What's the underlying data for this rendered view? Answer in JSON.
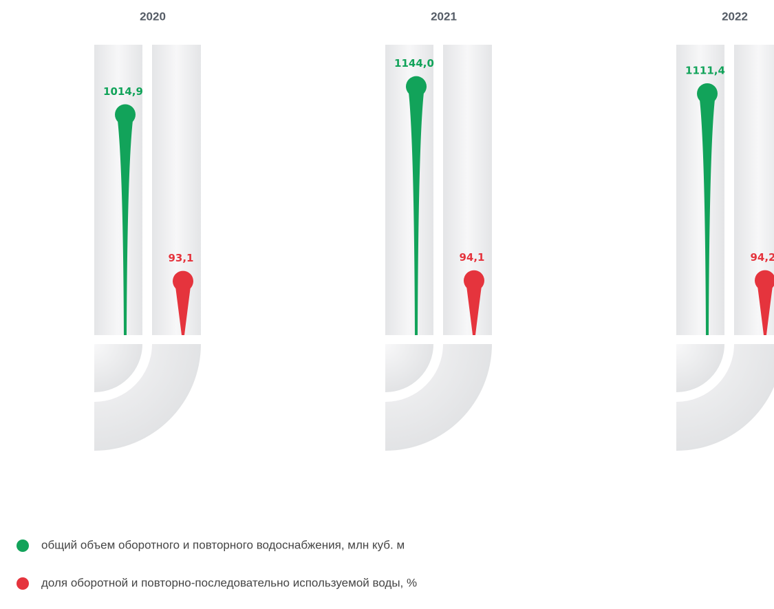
{
  "chart_data": {
    "type": "lollipop",
    "categories": [
      "2020",
      "2021",
      "2022"
    ],
    "series": [
      {
        "name": "общий объем оборотного и повторного водоснабжения, млн куб. м",
        "color": "#12a35a",
        "values": [
          1014.9,
          1144.0,
          1111.4
        ],
        "value_labels": [
          "1014,9",
          "1144,0",
          "1111,4"
        ]
      },
      {
        "name": "доля оборотной и повторно-последовательно используемой воды, %",
        "color": "#e5343d",
        "axis": "y2",
        "values": [
          93.1,
          94.1,
          94.2
        ],
        "value_labels": [
          "93,1",
          "94,1",
          "94,2"
        ]
      }
    ],
    "ylim": [
      0,
      1200
    ],
    "y2lim": [
      0,
      450
    ]
  }
}
